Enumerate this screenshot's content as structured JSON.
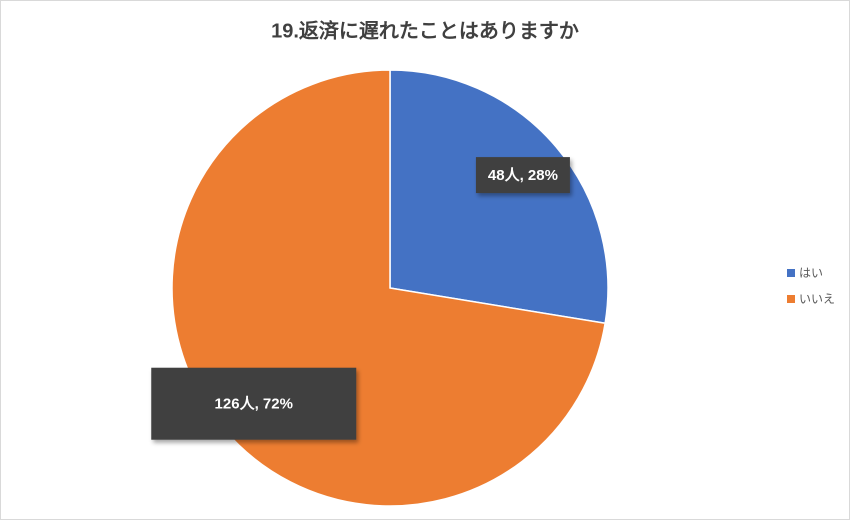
{
  "chart_data": {
    "type": "pie",
    "title": "19.返済に遅れたことはありますか",
    "categories": [
      "はい",
      "いいえ"
    ],
    "values": [
      48,
      126
    ],
    "value_labels": [
      "48人, 28%",
      "126人, 72%"
    ],
    "colors": [
      "#4472c4",
      "#ed7d31"
    ],
    "legend": "right"
  }
}
